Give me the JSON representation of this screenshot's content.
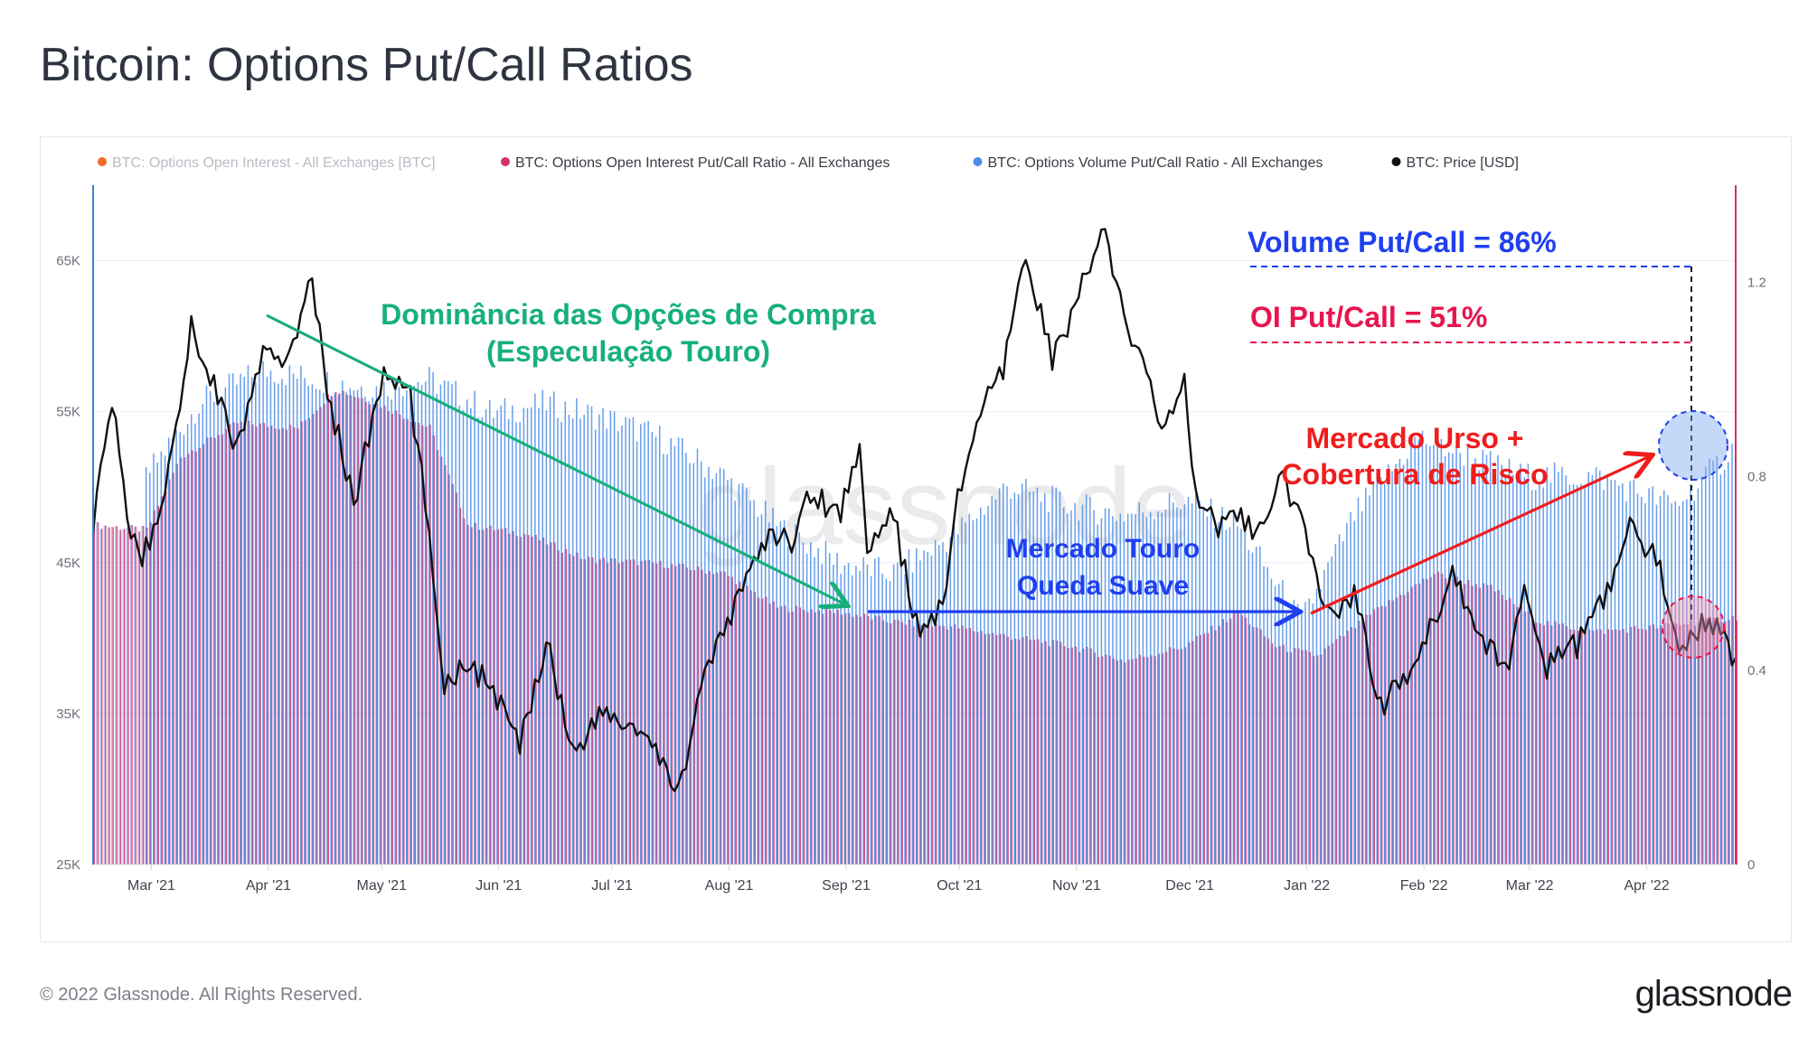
{
  "title": "Bitcoin: Options Put/Call Ratios",
  "footer": "© 2022 Glassnode. All Rights Reserved.",
  "logo": "glassnode",
  "watermark": "glassnode",
  "colors": {
    "oi_legend": "#f26a2a",
    "oi_ratio": "#d1316a",
    "volume_ratio": "#4b8de8",
    "price": "#111111",
    "left_axis": "#3a7fd8",
    "right_axis": "#d1316a",
    "green_annotation": "#17b07a",
    "blue_annotation": "#1f3ff0",
    "red_annotation": "#f01d1d",
    "pink_annotation": "#e8154e"
  },
  "legend": [
    {
      "label": "BTC: Options Open Interest - All Exchanges [BTC]",
      "dot": "#f26a2a",
      "dim": true
    },
    {
      "label": "BTC: Options Open Interest Put/Call Ratio - All Exchanges",
      "dot": "#d1316a",
      "dim": false
    },
    {
      "label": "BTC: Options Volume Put/Call Ratio - All Exchanges",
      "dot": "#4b8de8",
      "dim": false
    },
    {
      "label": "BTC: Price [USD]",
      "dot": "#111111",
      "dim": false
    }
  ],
  "annotations": {
    "green_line1": "Dominância das Opções de Compra",
    "green_line2": "(Especulação Touro)",
    "blue_line1": "Mercado Touro",
    "blue_line2": "Queda Suave",
    "red_line1": "Mercado Urso +",
    "red_line2": "Cobertura de Risco",
    "volume_label": "Volume Put/Call = 86%",
    "oi_label": "OI Put/Call = 51%"
  },
  "chart_data": {
    "type": "bar",
    "title": "Bitcoin: Options Put/Call Ratios",
    "x_range": [
      "2021-02-15",
      "2022-04-26"
    ],
    "x_ticks": [
      "Mar '21",
      "Apr '21",
      "May '21",
      "Jun '21",
      "Jul '21",
      "Aug '21",
      "Sep '21",
      "Oct '21",
      "Nov '21",
      "Dec '21",
      "Jan '22",
      "Feb '22",
      "Mar '22",
      "Apr '22"
    ],
    "y_left": {
      "ticks": [
        "25K",
        "35K",
        "45K",
        "55K",
        "65K"
      ],
      "range": [
        25000,
        70000
      ],
      "unit": "USD"
    },
    "y_right": {
      "ticks": [
        "0",
        "0.4",
        "0.8",
        "1.2"
      ],
      "range": [
        0,
        1.4
      ]
    },
    "legend_position": "top-left",
    "grid": true,
    "series": [
      {
        "name": "BTC: Options Open Interest Put/Call Ratio - All Exchanges",
        "kind": "bar",
        "axis": "right",
        "points": [
          [
            "2021-02-15",
            0.7
          ],
          [
            "2021-03-01",
            0.69
          ],
          [
            "2021-03-10",
            0.84
          ],
          [
            "2021-03-25",
            0.91
          ],
          [
            "2021-04-10",
            0.9
          ],
          [
            "2021-04-20",
            0.98
          ],
          [
            "2021-05-01",
            0.95
          ],
          [
            "2021-05-15",
            0.9
          ],
          [
            "2021-05-25",
            0.7
          ],
          [
            "2021-06-10",
            0.68
          ],
          [
            "2021-06-25",
            0.63
          ],
          [
            "2021-07-15",
            0.62
          ],
          [
            "2021-08-01",
            0.6
          ],
          [
            "2021-08-15",
            0.53
          ],
          [
            "2021-09-01",
            0.52
          ],
          [
            "2021-09-15",
            0.5
          ],
          [
            "2021-10-01",
            0.49
          ],
          [
            "2021-10-15",
            0.47
          ],
          [
            "2021-11-01",
            0.45
          ],
          [
            "2021-11-15",
            0.42
          ],
          [
            "2021-12-01",
            0.45
          ],
          [
            "2021-12-15",
            0.52
          ],
          [
            "2021-12-25",
            0.45
          ],
          [
            "2022-01-05",
            0.43
          ],
          [
            "2022-01-20",
            0.52
          ],
          [
            "2022-02-05",
            0.6
          ],
          [
            "2022-02-20",
            0.57
          ],
          [
            "2022-03-05",
            0.5
          ],
          [
            "2022-03-20",
            0.48
          ],
          [
            "2022-04-05",
            0.49
          ],
          [
            "2022-04-26",
            0.51
          ]
        ]
      },
      {
        "name": "BTC: Options Volume Put/Call Ratio - All Exchanges",
        "kind": "bar",
        "axis": "right",
        "points": [
          [
            "2021-03-01",
            0.8
          ],
          [
            "2021-03-15",
            0.95
          ],
          [
            "2021-04-01",
            1.02
          ],
          [
            "2021-04-15",
            1.0
          ],
          [
            "2021-05-01",
            0.98
          ],
          [
            "2021-05-15",
            1.0
          ],
          [
            "2021-06-01",
            0.93
          ],
          [
            "2021-06-15",
            0.95
          ],
          [
            "2021-07-01",
            0.92
          ],
          [
            "2021-07-15",
            0.88
          ],
          [
            "2021-08-01",
            0.8
          ],
          [
            "2021-08-15",
            0.7
          ],
          [
            "2021-09-01",
            0.62
          ],
          [
            "2021-09-15",
            0.6
          ],
          [
            "2021-10-01",
            0.68
          ],
          [
            "2021-10-15",
            0.78
          ],
          [
            "2021-11-01",
            0.74
          ],
          [
            "2021-11-15",
            0.72
          ],
          [
            "2021-12-01",
            0.75
          ],
          [
            "2021-12-15",
            0.7
          ],
          [
            "2022-01-01",
            0.5
          ],
          [
            "2022-01-15",
            0.72
          ],
          [
            "2022-02-01",
            0.88
          ],
          [
            "2022-02-15",
            0.84
          ],
          [
            "2022-03-01",
            0.8
          ],
          [
            "2022-03-20",
            0.8
          ],
          [
            "2022-04-10",
            0.74
          ],
          [
            "2022-04-26",
            0.86
          ]
        ]
      },
      {
        "name": "BTC: Price [USD]",
        "kind": "line",
        "axis": "left",
        "points": [
          [
            "2021-02-15",
            47800
          ],
          [
            "2021-02-20",
            55500
          ],
          [
            "2021-02-25",
            47000
          ],
          [
            "2021-02-28",
            45200
          ],
          [
            "2021-03-05",
            48500
          ],
          [
            "2021-03-13",
            60500
          ],
          [
            "2021-03-18",
            57500
          ],
          [
            "2021-03-25",
            52500
          ],
          [
            "2021-04-01",
            58800
          ],
          [
            "2021-04-06",
            58000
          ],
          [
            "2021-04-14",
            63500
          ],
          [
            "2021-04-18",
            56500
          ],
          [
            "2021-04-25",
            49000
          ],
          [
            "2021-05-03",
            57500
          ],
          [
            "2021-05-10",
            56000
          ],
          [
            "2021-05-15",
            47000
          ],
          [
            "2021-05-19",
            37000
          ],
          [
            "2021-05-25",
            38500
          ],
          [
            "2021-06-01",
            36500
          ],
          [
            "2021-06-08",
            32800
          ],
          [
            "2021-06-15",
            40000
          ],
          [
            "2021-06-22",
            32500
          ],
          [
            "2021-06-30",
            35000
          ],
          [
            "2021-07-10",
            33800
          ],
          [
            "2021-07-20",
            29800
          ],
          [
            "2021-07-26",
            37000
          ],
          [
            "2021-08-01",
            40000
          ],
          [
            "2021-08-07",
            44500
          ],
          [
            "2021-08-14",
            46800
          ],
          [
            "2021-08-20",
            46500
          ],
          [
            "2021-08-23",
            49500
          ],
          [
            "2021-09-01",
            48500
          ],
          [
            "2021-09-06",
            52500
          ],
          [
            "2021-09-08",
            46500
          ],
          [
            "2021-09-15",
            48000
          ],
          [
            "2021-09-21",
            40800
          ],
          [
            "2021-09-28",
            42000
          ],
          [
            "2021-10-01",
            48000
          ],
          [
            "2021-10-07",
            54500
          ],
          [
            "2021-10-14",
            57500
          ],
          [
            "2021-10-20",
            65500
          ],
          [
            "2021-10-27",
            58500
          ],
          [
            "2021-11-01",
            61000
          ],
          [
            "2021-11-09",
            67500
          ],
          [
            "2021-11-16",
            60000
          ],
          [
            "2021-11-20",
            58500
          ],
          [
            "2021-11-26",
            53500
          ],
          [
            "2021-12-01",
            57500
          ],
          [
            "2021-12-04",
            49000
          ],
          [
            "2021-12-10",
            47500
          ],
          [
            "2021-12-15",
            48500
          ],
          [
            "2021-12-20",
            46500
          ],
          [
            "2021-12-27",
            50500
          ],
          [
            "2022-01-01",
            47500
          ],
          [
            "2022-01-08",
            41500
          ],
          [
            "2022-01-15",
            43000
          ],
          [
            "2022-01-22",
            35500
          ],
          [
            "2022-02-01",
            38500
          ],
          [
            "2022-02-10",
            44500
          ],
          [
            "2022-02-17",
            40500
          ],
          [
            "2022-02-24",
            37500
          ],
          [
            "2022-03-01",
            44000
          ],
          [
            "2022-03-07",
            38000
          ],
          [
            "2022-03-15",
            39500
          ],
          [
            "2022-03-22",
            42500
          ],
          [
            "2022-03-29",
            47200
          ],
          [
            "2022-04-05",
            45500
          ],
          [
            "2022-04-11",
            39500
          ],
          [
            "2022-04-19",
            41500
          ],
          [
            "2022-04-26",
            38500
          ]
        ]
      }
    ]
  }
}
